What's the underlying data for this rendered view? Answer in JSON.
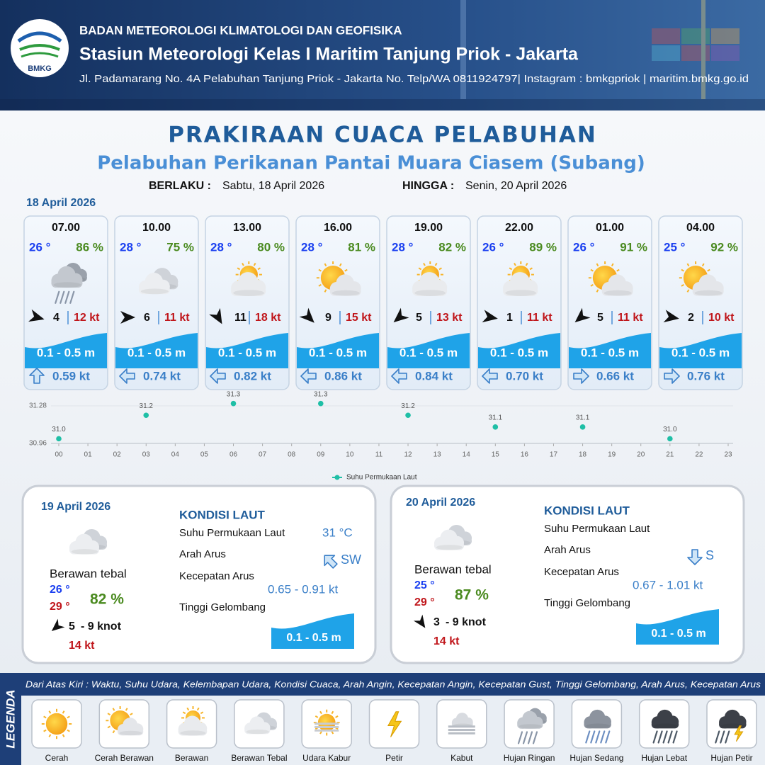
{
  "header": {
    "logo_text": "BMKG",
    "agency": "BADAN METEOROLOGI KLIMATOLOGI DAN GEOFISIKA",
    "station": "Stasiun Meteorologi Kelas I Maritim Tanjung Priok - Jakarta",
    "address": "Jl. Padamarang No. 4A Pelabuhan Tanjung Priok - Jakarta No. Telp/WA 0811924797| Instagram : bmkgpriok | maritim.bmkg.go.id"
  },
  "title": "PRAKIRAAN CUACA PELABUHAN",
  "subtitle": "Pelabuhan Perikanan Pantai Muara Ciasem (Subang)",
  "validity": {
    "from_label": "BERLAKU :",
    "from": "Sabtu, 18 April 2026",
    "to_label": "HINGGA :",
    "to": "Senin, 20 April 2026"
  },
  "today": {
    "date": "18 April 2026",
    "forecasts": [
      {
        "time": "07.00",
        "temperature": "26 °",
        "humidity": "86 %",
        "wind_speed": 4,
        "gust": "12 kt",
        "wave": "0.1 - 0.5 m",
        "current_speed": "0.59 kt"
      },
      {
        "time": "10.00",
        "temperature": "28 °",
        "humidity": "75 %",
        "wind_speed": 6,
        "gust": "11 kt",
        "wave": "0.1 - 0.5 m",
        "current_speed": "0.74 kt"
      },
      {
        "time": "13.00",
        "temperature": "28 °",
        "humidity": "80 %",
        "wind_speed": 11,
        "gust": "18 kt",
        "wave": "0.1 - 0.5 m",
        "current_speed": "0.82 kt"
      },
      {
        "time": "16.00",
        "temperature": "28 °",
        "humidity": "81 %",
        "wind_speed": 9,
        "gust": "15 kt",
        "wave": "0.1 - 0.5 m",
        "current_speed": "0.86 kt"
      },
      {
        "time": "19.00",
        "temperature": "28 °",
        "humidity": "82 %",
        "wind_speed": 5,
        "gust": "13 kt",
        "wave": "0.1 - 0.5 m",
        "current_speed": "0.84 kt"
      },
      {
        "time": "22.00",
        "temperature": "26 °",
        "humidity": "89 %",
        "wind_speed": 1,
        "gust": "11 kt",
        "wave": "0.1 - 0.5 m",
        "current_speed": "0.70 kt"
      },
      {
        "time": "01.00",
        "temperature": "26 °",
        "humidity": "91 %",
        "wind_speed": 5,
        "gust": "11 kt",
        "wave": "0.1 - 0.5 m",
        "current_speed": "0.66 kt"
      },
      {
        "time": "04.00",
        "temperature": "25 °",
        "humidity": "92 %",
        "wind_speed": 2,
        "gust": "10 kt",
        "wave": "0.1 - 0.5 m",
        "current_speed": "0.76 kt"
      }
    ]
  },
  "chart_data": {
    "type": "scatter",
    "x": [
      0,
      3,
      6,
      9,
      12,
      15,
      18,
      21
    ],
    "series": [
      {
        "name": "Suhu Permukaan Laut",
        "color": "#1fbfa6",
        "values": [
          31.0,
          31.2,
          31.3,
          31.3,
          31.2,
          31.1,
          31.1,
          31.0
        ],
        "value_labels": [
          "31.0",
          "31.2",
          "31.3",
          "31.3",
          "31.2",
          "31.1",
          "31.1",
          "31.0"
        ]
      }
    ],
    "xlim": [
      0,
      23
    ],
    "xticks": [
      {
        "value": 0,
        "label": "00"
      },
      {
        "value": 1,
        "label": "01"
      },
      {
        "value": 2,
        "label": "02"
      },
      {
        "value": 3,
        "label": "03"
      },
      {
        "value": 4,
        "label": "04"
      },
      {
        "value": 5,
        "label": "05"
      },
      {
        "value": 6,
        "label": "06"
      },
      {
        "value": 7,
        "label": "07"
      },
      {
        "value": 8,
        "label": "08"
      },
      {
        "value": 9,
        "label": "09"
      },
      10,
      11,
      12,
      13,
      14,
      15,
      16,
      17,
      18,
      19,
      20,
      21,
      22,
      23
    ],
    "ylim": [
      30.96,
      31.28
    ],
    "yticks": [
      30.96,
      31.28
    ],
    "grid": true
  },
  "days": [
    {
      "date": "19 April 2026",
      "condition": "Berawan tebal",
      "temp_min": "26 °",
      "temp_max": "29 °",
      "humidity": "82 %",
      "wind_from": 5,
      "wind_range": "- 9 knot",
      "gust": "14 kt",
      "sea_heading": "KONDISI LAUT",
      "sst_label": "Suhu Permukaan Laut",
      "sst_value": "31 °C",
      "current_dir_label": "Arah Arus",
      "current_dir": "SW",
      "current_speed_label": "Kecepatan Arus",
      "current_speed": "0.65 - 0.91 kt",
      "wave_label": "Tinggi Gelombang",
      "wave": "0.1 - 0.5 m"
    },
    {
      "date": "20 April 2026",
      "condition": "Berawan tebal",
      "temp_min": "25 °",
      "temp_max": "29 °",
      "humidity": "87 %",
      "wind_from": 3,
      "wind_range": "- 9 knot",
      "gust": "14 kt",
      "sea_heading": "KONDISI LAUT",
      "sst_label": "Suhu Permukaan Laut",
      "current_dir_label": "Arah Arus",
      "current_dir": "S",
      "current_speed_label": "Kecepatan Arus",
      "current_speed": "0.67 - 1.01 kt",
      "wave_label": "Tinggi Gelombang",
      "wave": "0.1 - 0.5 m"
    }
  ],
  "legend": {
    "title": "LEGENDA",
    "description": "Dari Atas Kiri : Waktu, Suhu Udara, Kelembapan Udara, Kondisi Cuaca, Arah Angin, Kecepatan Angin, Kecepatan Gust, Tinggi Gelombang, Arah Arus, Kecepatan Arus",
    "items": [
      "Cerah",
      "Cerah Berawan",
      "Berawan",
      "Berawan Tebal",
      "Udara Kabur",
      "Petir",
      "Kabut",
      "Hujan Ringan",
      "Hujan Sedang",
      "Hujan Lebat",
      "Hujan Petir"
    ]
  }
}
